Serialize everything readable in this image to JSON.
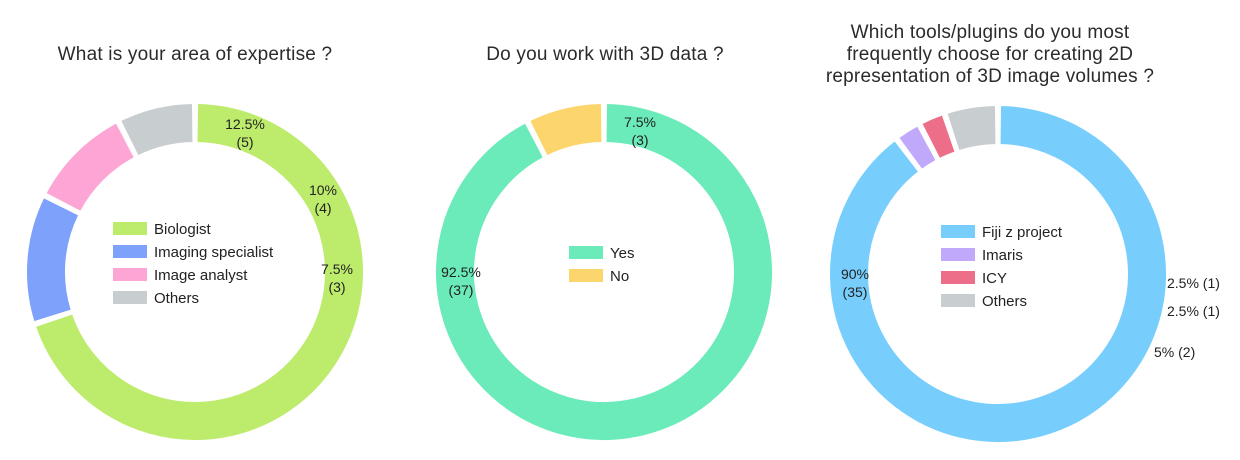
{
  "chart_data": [
    {
      "type": "pie",
      "title": "What is your area of expertise ?",
      "slices": [
        {
          "name": "Biologist",
          "percent": "70%",
          "count": "(28)",
          "value": 28,
          "color": "#bdeb6b"
        },
        {
          "name": "Imaging specialist",
          "percent": "12.5%",
          "count": "(5)",
          "value": 5,
          "color": "#7ea1fb"
        },
        {
          "name": "Image analyst",
          "percent": "10%",
          "count": "(4)",
          "value": 4,
          "color": "#fda5d5"
        },
        {
          "name": "Others",
          "percent": "7.5%",
          "count": "(3)",
          "value": 3,
          "color": "#c8cdd0"
        }
      ],
      "legend": "center"
    },
    {
      "type": "pie",
      "title": "Do you work with 3D data ?",
      "slices": [
        {
          "name": "Yes",
          "percent": "92.5%",
          "count": "(37)",
          "value": 37,
          "color": "#6aebb9"
        },
        {
          "name": "No",
          "percent": "7.5%",
          "count": "(3)",
          "value": 3,
          "color": "#fdd56d"
        }
      ],
      "legend": "center"
    },
    {
      "type": "pie",
      "title": "Which tools/plugins do you most frequently choose for creating 2D representation of 3D image volumes ?",
      "title_lines": [
        "Which tools/plugins do you most",
        "frequently choose for creating 2D",
        "representation of 3D image volumes ?"
      ],
      "slices": [
        {
          "name": "Fiji z project",
          "percent": "90%",
          "count": "(35)",
          "value": 35,
          "color": "#77cefd"
        },
        {
          "name": "Imaris",
          "percent": "2.5%",
          "count": "(1)",
          "value": 1,
          "color": "#c0a8fb"
        },
        {
          "name": "ICY",
          "percent": "2.5%",
          "count": "(1)",
          "value": 1,
          "color": "#ed6e89"
        },
        {
          "name": "Others",
          "percent": "5%",
          "count": "(2)",
          "value": 2,
          "color": "#c8cdd0"
        }
      ],
      "legend": "center"
    }
  ]
}
